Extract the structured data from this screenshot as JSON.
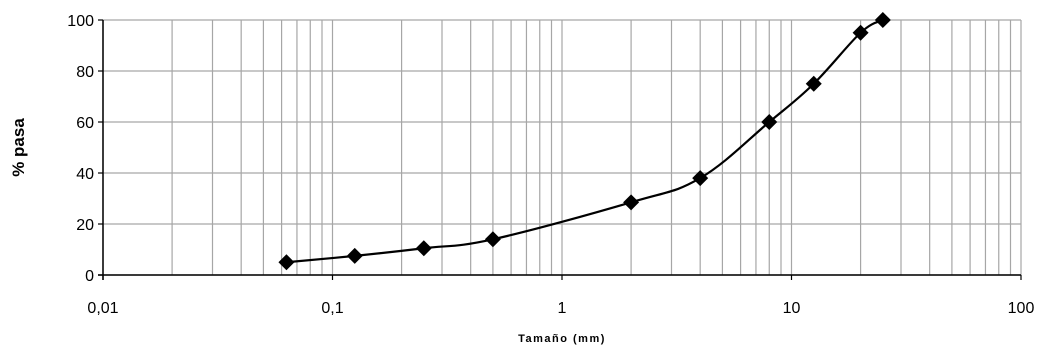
{
  "chart_data": {
    "type": "line",
    "x_scale": "log",
    "xlabel": "Tamaño (mm)",
    "ylabel": "% pasa",
    "xlim": [
      0.01,
      100
    ],
    "ylim": [
      0,
      100
    ],
    "x_ticks": [
      0.01,
      0.1,
      1,
      10,
      100
    ],
    "x_tick_labels": [
      "0,01",
      "0,1",
      "1",
      "10",
      "100"
    ],
    "y_ticks": [
      0,
      20,
      40,
      60,
      80,
      100
    ],
    "y_tick_labels": [
      "0",
      "20",
      "40",
      "60",
      "80",
      "100"
    ],
    "grid": true,
    "legend": "none",
    "series": [
      {
        "marker": "diamond",
        "color": "#000000",
        "x": [
          0.063,
          0.125,
          0.25,
          0.5,
          2,
          4,
          8,
          12.5,
          20,
          25
        ],
        "y": [
          5,
          7.5,
          10.5,
          14,
          28.5,
          38,
          60,
          75,
          95,
          100
        ]
      }
    ]
  }
}
